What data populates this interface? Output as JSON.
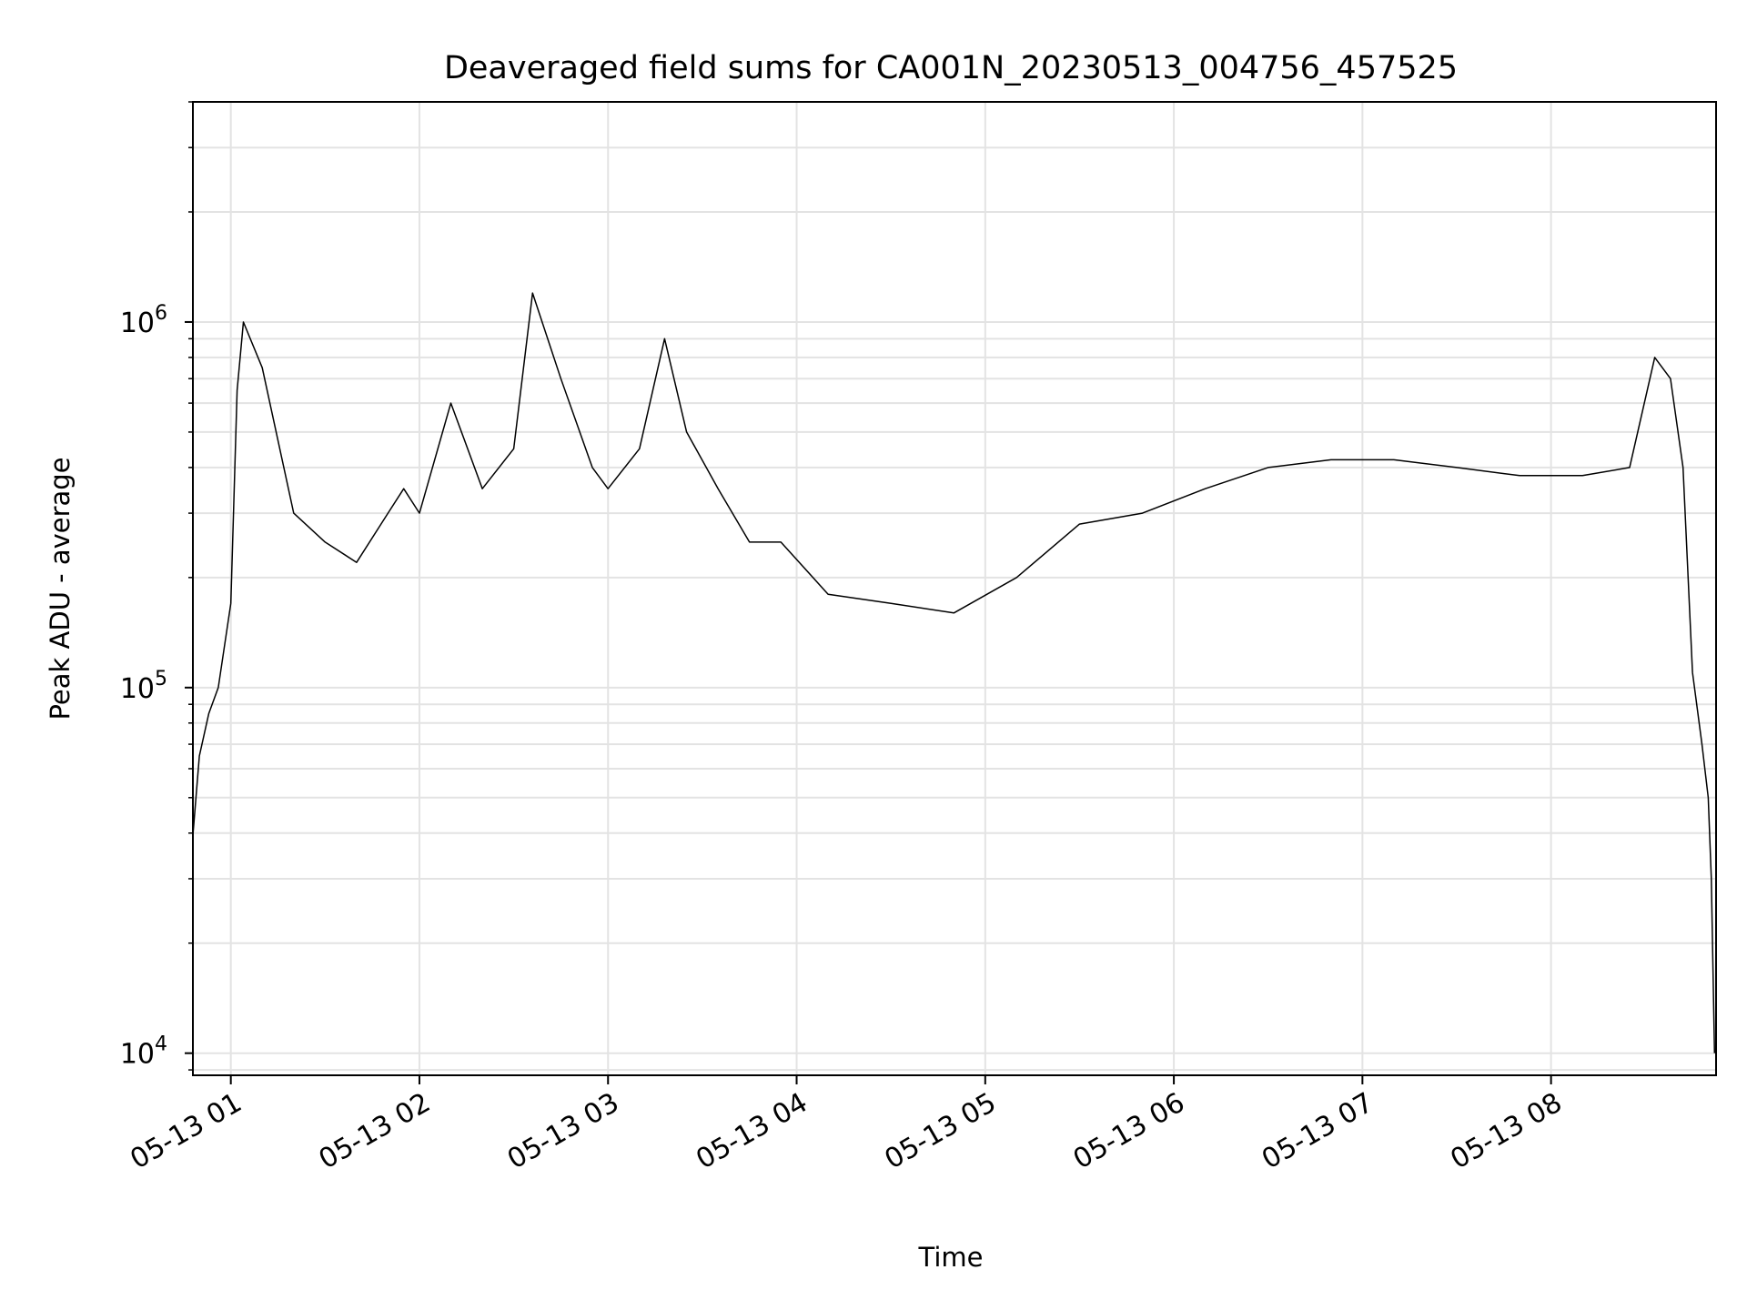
{
  "chart_data": {
    "type": "line",
    "title": "Deaveraged field sums for CA001N_20230513_004756_457525",
    "xlabel": "Time",
    "ylabel": "Peak ADU - average",
    "yscale": "log",
    "grid": "on (major and minor)",
    "xlim": [
      "2023-05-13 00:47:56",
      "2023-05-13 08:52:30"
    ],
    "ylim": [
      8700,
      4000000
    ],
    "xticks": [
      "05-13 01",
      "05-13 02",
      "05-13 03",
      "05-13 04",
      "05-13 05",
      "05-13 06",
      "05-13 07",
      "05-13 08"
    ],
    "yticks": [
      {
        "base": "10",
        "exp": "4"
      },
      {
        "base": "10",
        "exp": "5"
      },
      {
        "base": "10",
        "exp": "6"
      }
    ],
    "line_color": "#000000",
    "series": [
      {
        "x": [
          "2023-05-13 00:48",
          "2023-05-13 00:50",
          "2023-05-13 00:53",
          "2023-05-13 00:56",
          "2023-05-13 01:00",
          "2023-05-13 01:02",
          "2023-05-13 01:04",
          "2023-05-13 01:10",
          "2023-05-13 01:20",
          "2023-05-13 01:30",
          "2023-05-13 01:40",
          "2023-05-13 01:50",
          "2023-05-13 01:55",
          "2023-05-13 02:00",
          "2023-05-13 02:10",
          "2023-05-13 02:20",
          "2023-05-13 02:30",
          "2023-05-13 02:36",
          "2023-05-13 02:45",
          "2023-05-13 02:55",
          "2023-05-13 03:00",
          "2023-05-13 03:10",
          "2023-05-13 03:18",
          "2023-05-13 03:25",
          "2023-05-13 03:35",
          "2023-05-13 03:45",
          "2023-05-13 03:55",
          "2023-05-13 04:10",
          "2023-05-13 04:30",
          "2023-05-13 04:50",
          "2023-05-13 05:10",
          "2023-05-13 05:30",
          "2023-05-13 05:50",
          "2023-05-13 06:10",
          "2023-05-13 06:30",
          "2023-05-13 06:50",
          "2023-05-13 07:10",
          "2023-05-13 07:30",
          "2023-05-13 07:50",
          "2023-05-13 08:10",
          "2023-05-13 08:25",
          "2023-05-13 08:33",
          "2023-05-13 08:38",
          "2023-05-13 08:42",
          "2023-05-13 08:45",
          "2023-05-13 08:48",
          "2023-05-13 08:50",
          "2023-05-13 08:51",
          "2023-05-13 08:52"
        ],
        "values": [
          40000,
          65000,
          85000,
          100000,
          170000,
          650000,
          1000000,
          750000,
          300000,
          250000,
          220000,
          300000,
          350000,
          300000,
          600000,
          350000,
          450000,
          1200000,
          700000,
          400000,
          350000,
          450000,
          900000,
          500000,
          350000,
          250000,
          250000,
          180000,
          170000,
          160000,
          200000,
          280000,
          300000,
          350000,
          400000,
          420000,
          420000,
          400000,
          380000,
          380000,
          400000,
          800000,
          700000,
          400000,
          110000,
          70000,
          50000,
          30000,
          10000
        ]
      }
    ]
  }
}
